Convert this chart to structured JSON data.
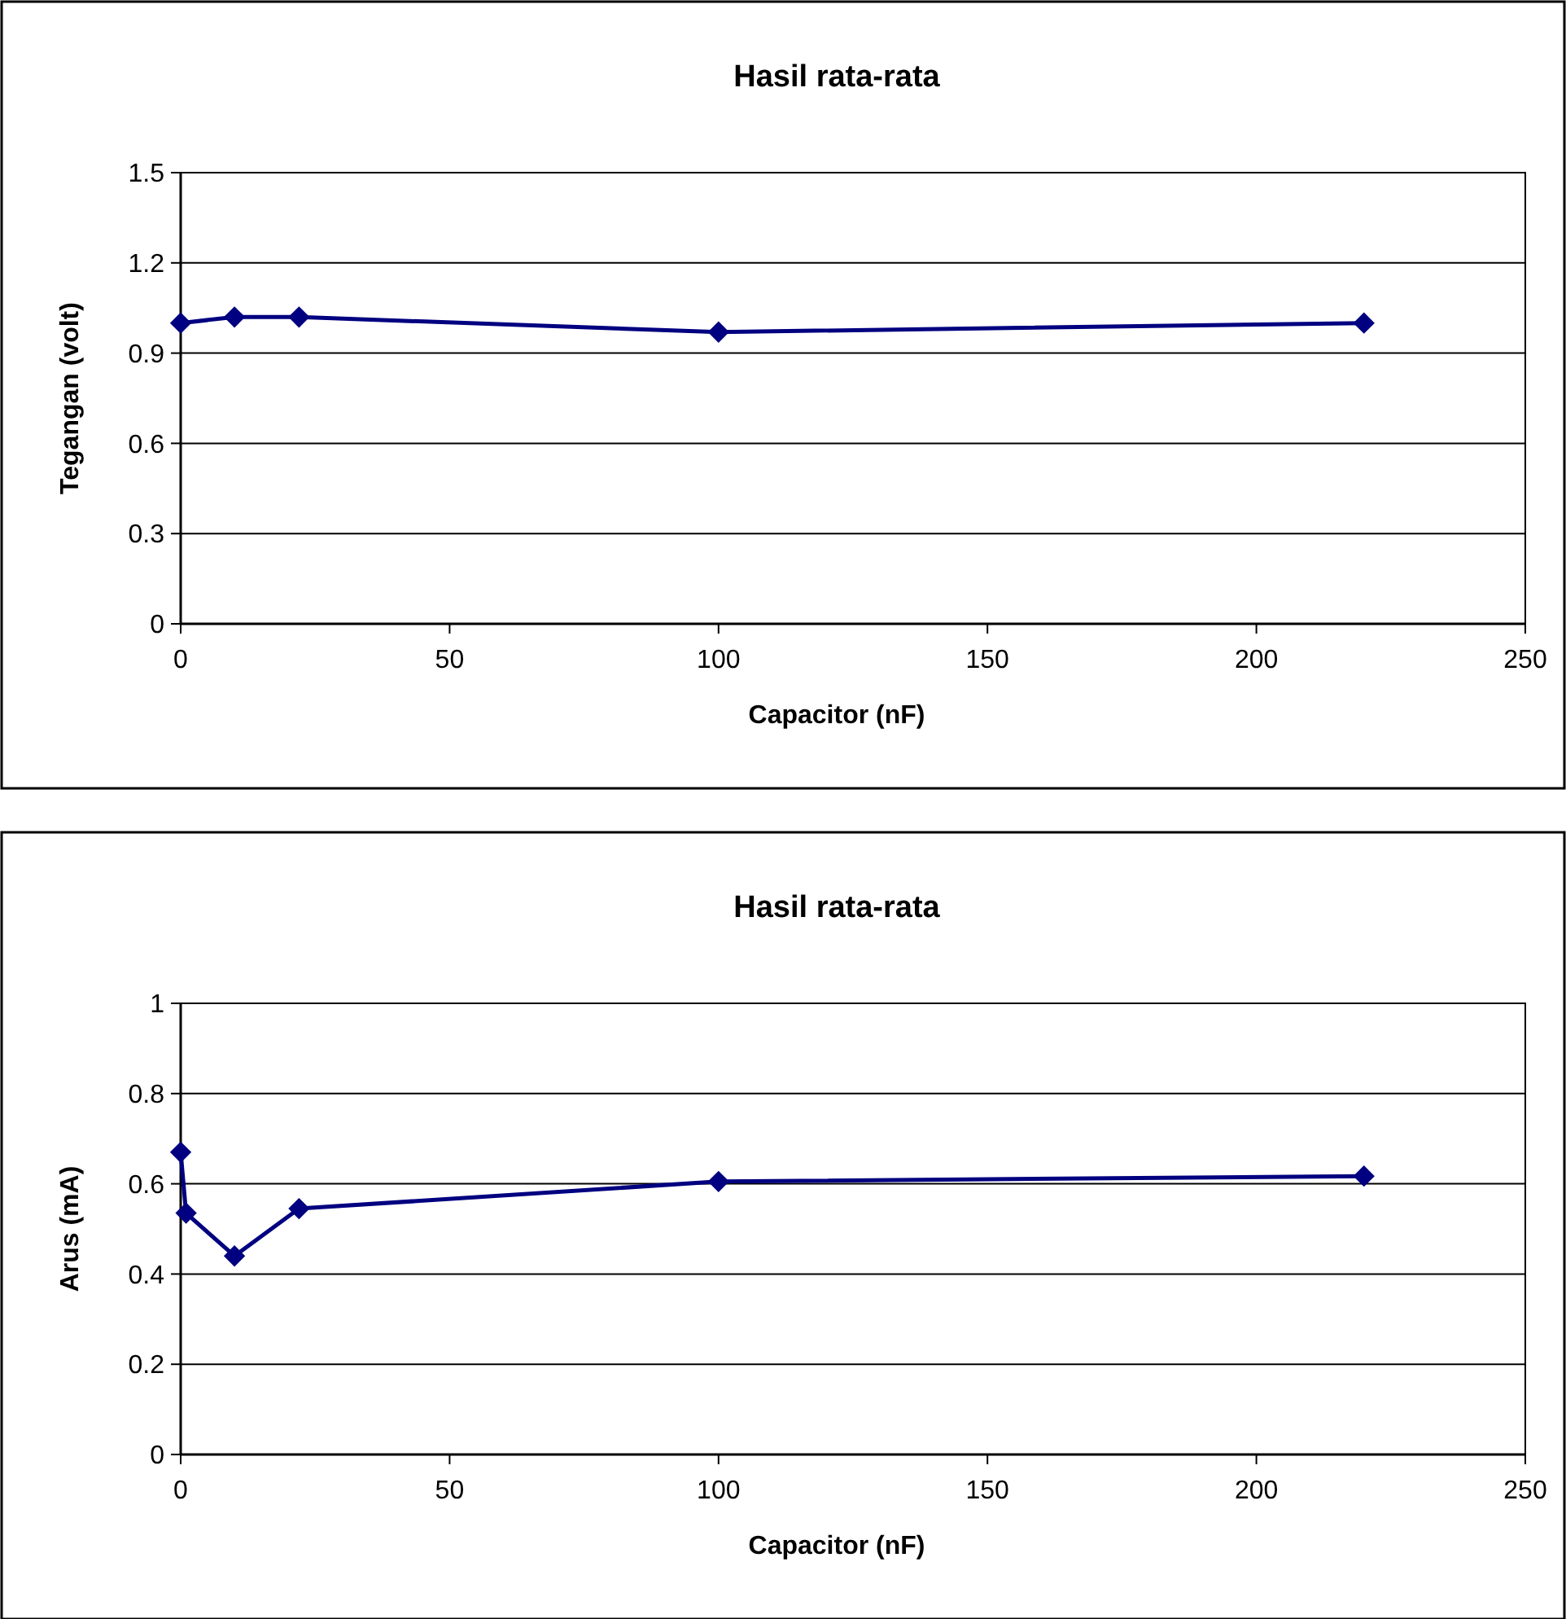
{
  "chart_data": [
    {
      "type": "line",
      "title": "Hasil rata-rata",
      "xlabel": "Capacitor (nF)",
      "ylabel": "Tegangan (volt)",
      "x": [
        0,
        10,
        22,
        100,
        220
      ],
      "series": [
        {
          "color": "#000080",
          "values": [
            1.0,
            1.02,
            1.02,
            0.97,
            1.0
          ]
        }
      ],
      "xlim": [
        0,
        250
      ],
      "xticks": [
        0,
        50,
        100,
        150,
        200,
        250
      ],
      "ylim": [
        0,
        1.5
      ],
      "yticks": [
        0,
        0.3,
        0.6,
        0.9,
        1.2,
        1.5
      ],
      "grid": "y",
      "marker": "diamond",
      "line_style": "solid"
    },
    {
      "type": "line",
      "title": "Hasil rata-rata",
      "xlabel": "Capacitor (nF)",
      "ylabel": "Arus (mA)",
      "x": [
        0,
        1,
        10,
        22,
        100,
        220
      ],
      "series": [
        {
          "color": "#000080",
          "values": [
            0.67,
            0.535,
            0.44,
            0.545,
            0.605,
            0.617
          ]
        }
      ],
      "xlim": [
        0,
        250
      ],
      "xticks": [
        0,
        50,
        100,
        150,
        200,
        250
      ],
      "ylim": [
        0,
        1
      ],
      "yticks": [
        0,
        0.2,
        0.4,
        0.6,
        0.8,
        1
      ],
      "grid": "y",
      "marker": "diamond",
      "line_style": "solid"
    }
  ]
}
